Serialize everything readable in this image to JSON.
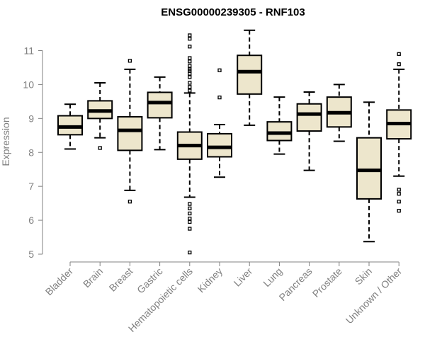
{
  "chart_data": {
    "type": "boxplot",
    "title": "ENSG00000239305 - RNF103",
    "xlabel": "",
    "ylabel": "Expression",
    "ylim": [
      5,
      11.3
    ],
    "yticks": [
      5,
      6,
      7,
      8,
      9,
      10,
      11
    ],
    "box_color": "#ede6cc",
    "axis_color": "#808080",
    "categories": [
      "Bladder",
      "Brain",
      "Breast",
      "Gastric",
      "Hematopoietic cells",
      "Kidney",
      "Liver",
      "Lung",
      "Pancreas",
      "Prostate",
      "Skin",
      "Unknown / Other"
    ],
    "boxes": [
      {
        "category": "Bladder",
        "whisker_low": 8.1,
        "q1": 8.52,
        "median": 8.75,
        "q3": 9.08,
        "whisker_high": 9.42,
        "outliers": []
      },
      {
        "category": "Brain",
        "whisker_low": 8.43,
        "q1": 9.0,
        "median": 9.22,
        "q3": 9.52,
        "whisker_high": 10.05,
        "outliers": [
          8.13
        ]
      },
      {
        "category": "Breast",
        "whisker_low": 6.88,
        "q1": 8.06,
        "median": 8.65,
        "q3": 9.05,
        "whisker_high": 10.45,
        "outliers": [
          10.7,
          6.55
        ]
      },
      {
        "category": "Gastric",
        "whisker_low": 8.08,
        "q1": 9.02,
        "median": 9.47,
        "q3": 9.77,
        "whisker_high": 10.22,
        "outliers": []
      },
      {
        "category": "Hematopoietic cells",
        "whisker_low": 6.68,
        "q1": 7.8,
        "median": 8.2,
        "q3": 8.6,
        "whisker_high": 9.75,
        "outliers": [
          11.45,
          11.35,
          11.12,
          10.78,
          10.68,
          10.55,
          10.45,
          10.4,
          10.32,
          10.22,
          10.05,
          9.93,
          9.82,
          6.48,
          6.35,
          6.2,
          6.05,
          5.95,
          5.75,
          5.05
        ]
      },
      {
        "category": "Kidney",
        "whisker_low": 7.27,
        "q1": 7.87,
        "median": 8.15,
        "q3": 8.55,
        "whisker_high": 8.82,
        "outliers": [
          10.42,
          9.62
        ]
      },
      {
        "category": "Liver",
        "whisker_low": 8.8,
        "q1": 9.72,
        "median": 10.38,
        "q3": 10.86,
        "whisker_high": 11.6,
        "outliers": []
      },
      {
        "category": "Lung",
        "whisker_low": 7.95,
        "q1": 8.35,
        "median": 8.57,
        "q3": 8.9,
        "whisker_high": 9.63,
        "outliers": []
      },
      {
        "category": "Pancreas",
        "whisker_low": 7.47,
        "q1": 8.63,
        "median": 9.13,
        "q3": 9.43,
        "whisker_high": 9.78,
        "outliers": []
      },
      {
        "category": "Prostate",
        "whisker_low": 8.33,
        "q1": 8.75,
        "median": 9.17,
        "q3": 9.63,
        "whisker_high": 10.0,
        "outliers": []
      },
      {
        "category": "Skin",
        "whisker_low": 5.37,
        "q1": 6.63,
        "median": 7.47,
        "q3": 8.43,
        "whisker_high": 9.48,
        "outliers": []
      },
      {
        "category": "Unknown / Other",
        "whisker_low": 7.3,
        "q1": 8.4,
        "median": 8.85,
        "q3": 9.25,
        "whisker_high": 10.45,
        "outliers": [
          10.9,
          10.6,
          6.9,
          6.78,
          6.55,
          6.28
        ]
      }
    ]
  }
}
